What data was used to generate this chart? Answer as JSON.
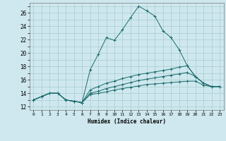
{
  "xlabel": "Humidex (Indice chaleur)",
  "bg_color": "#cfe8ef",
  "grid_color": "#a8cccc",
  "line_color": "#1a6b6b",
  "xlim": [
    -0.5,
    23.5
  ],
  "ylim": [
    11.5,
    27.5
  ],
  "xticks": [
    0,
    1,
    2,
    3,
    4,
    5,
    6,
    7,
    8,
    9,
    10,
    11,
    12,
    13,
    14,
    15,
    16,
    17,
    18,
    19,
    20,
    21,
    22,
    23
  ],
  "yticks": [
    12,
    14,
    16,
    18,
    20,
    22,
    24,
    26
  ],
  "yticks_minor": [
    12,
    13,
    14,
    15,
    16,
    17,
    18,
    19,
    20,
    21,
    22,
    23,
    24,
    25,
    26,
    27
  ],
  "series": [
    [
      13.0,
      13.5,
      14.0,
      14.0,
      13.0,
      12.8,
      12.6,
      17.5,
      19.8,
      22.3,
      21.9,
      23.5,
      25.3,
      27.0,
      26.3,
      25.5,
      23.3,
      22.3,
      20.5,
      18.1,
      16.5,
      15.5,
      15.0,
      15.0
    ],
    [
      13.0,
      13.5,
      14.0,
      14.0,
      13.0,
      12.8,
      12.6,
      14.5,
      15.0,
      15.5,
      15.8,
      16.2,
      16.5,
      16.8,
      17.0,
      17.2,
      17.4,
      17.6,
      17.9,
      18.1,
      16.5,
      15.5,
      15.0,
      15.0
    ],
    [
      13.0,
      13.5,
      14.0,
      14.0,
      13.0,
      12.8,
      12.6,
      14.0,
      14.3,
      14.7,
      15.0,
      15.3,
      15.6,
      15.9,
      16.1,
      16.3,
      16.5,
      16.7,
      16.9,
      17.1,
      16.5,
      15.5,
      15.0,
      15.0
    ],
    [
      13.0,
      13.5,
      14.0,
      14.0,
      13.0,
      12.8,
      12.6,
      13.8,
      14.0,
      14.2,
      14.5,
      14.7,
      14.9,
      15.1,
      15.3,
      15.4,
      15.5,
      15.6,
      15.7,
      15.8,
      15.8,
      15.2,
      15.0,
      15.0
    ]
  ]
}
